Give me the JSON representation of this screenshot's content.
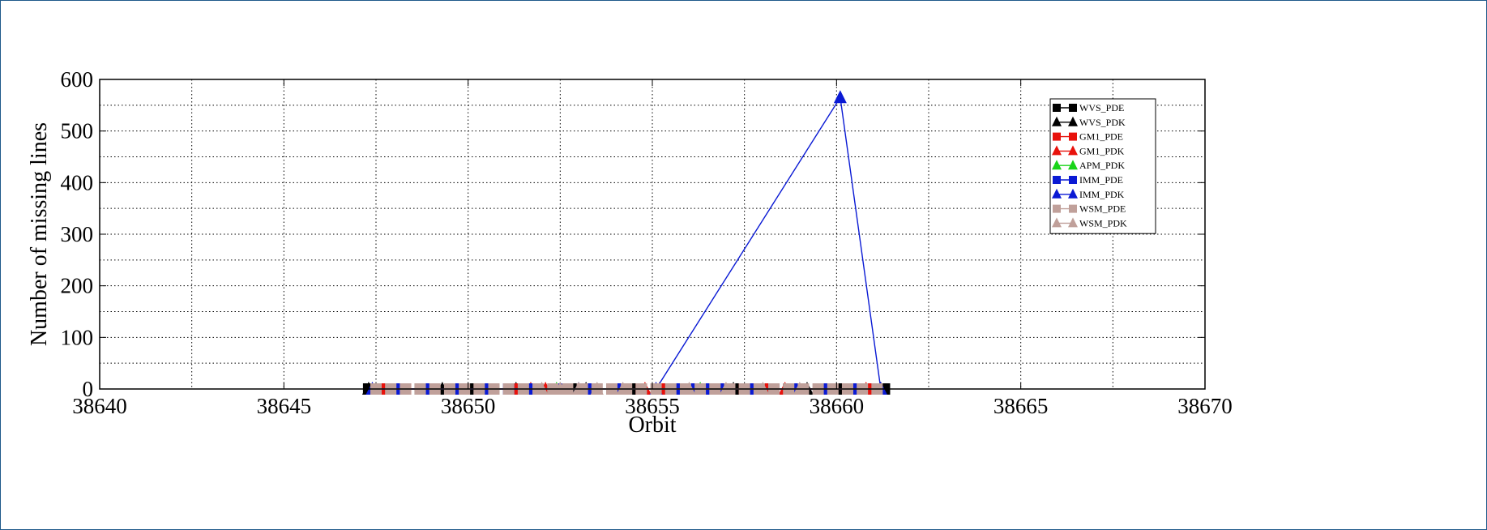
{
  "chart_data": {
    "type": "line",
    "xlabel": "Orbit",
    "ylabel": "Number of missing lines",
    "xlim": [
      38640,
      38670
    ],
    "ylim": [
      0,
      600
    ],
    "xticks": [
      38640,
      38645,
      38650,
      38655,
      38660,
      38665,
      38670
    ],
    "yticks": [
      0,
      100,
      200,
      300,
      400,
      500,
      600
    ],
    "grid": true,
    "legend_position": "top-right",
    "series": [
      {
        "name": "WVS_PDE",
        "marker": "square",
        "color": "#000000",
        "x": [
          38647.3,
          38648.7,
          38650.1,
          38651.6,
          38653.0,
          38654.4,
          38655.9,
          38657.3,
          38658.7,
          38660.1,
          38661.3
        ],
        "y": [
          0,
          0,
          0,
          0,
          0,
          0,
          0,
          0,
          0,
          0,
          0
        ]
      },
      {
        "name": "WVS_PDK",
        "marker": "triangle",
        "color": "#000000",
        "x": [
          38647.3,
          38649.3,
          38651.3,
          38653.2,
          38655.2,
          38657.2,
          38659.2,
          38661.2
        ],
        "y": [
          0,
          0,
          0,
          0,
          0,
          0,
          0,
          0
        ]
      },
      {
        "name": "GM1_PDE",
        "marker": "square",
        "color": "#e8120c",
        "x": [
          38647.6,
          38648.3,
          38649.0,
          38649.8,
          38650.5,
          38651.2,
          38651.9,
          38652.6,
          38653.3,
          38654.0,
          38654.7,
          38655.4,
          38656.1,
          38656.8,
          38657.5,
          38658.2,
          38658.9,
          38659.6,
          38660.3,
          38661.0
        ],
        "y": [
          0,
          0,
          0,
          0,
          0,
          0,
          0,
          0,
          0,
          0,
          0,
          0,
          0,
          0,
          0,
          0,
          0,
          0,
          0,
          0
        ]
      },
      {
        "name": "GM1_PDK",
        "marker": "triangle",
        "color": "#e8120c",
        "x": [
          38651.7,
          38652.1,
          38654.8,
          38655.2,
          38658.6,
          38660.8
        ],
        "y": [
          0,
          0,
          0,
          0,
          0,
          0
        ]
      },
      {
        "name": "APM_PDK",
        "marker": "triangle",
        "color": "#19d419",
        "x": [
          38652.4,
          38656.3
        ],
        "y": [
          0,
          0
        ]
      },
      {
        "name": "IMM_PDE",
        "marker": "square",
        "color": "#0a1ad4",
        "x": [
          38648.1,
          38648.9,
          38649.6,
          38650.4,
          38651.1,
          38651.8,
          38652.5,
          38653.4,
          38654.1,
          38655.6,
          38656.1,
          38656.5,
          38656.9,
          38657.6,
          38658.3,
          38659.0,
          38659.7,
          38660.6
        ],
        "y": [
          0,
          0,
          0,
          0,
          0,
          0,
          0,
          0,
          0,
          0,
          0,
          0,
          0,
          0,
          0,
          0,
          0,
          0
        ]
      },
      {
        "name": "IMM_PDK",
        "marker": "triangle",
        "color": "#0a1ad4",
        "x": [
          38647.4,
          38653.0,
          38655.1,
          38660.1,
          38661.2
        ],
        "y": [
          0,
          0,
          0,
          565,
          0
        ]
      },
      {
        "name": "WSM_PDE",
        "marker": "square",
        "color": "#c0a09a",
        "x": [
          38647.5,
          38647.9,
          38648.3,
          38648.7,
          38649.1,
          38649.5,
          38649.9,
          38650.3,
          38650.7,
          38651.1,
          38651.5,
          38651.9,
          38652.3,
          38652.7,
          38653.1,
          38653.5,
          38653.9,
          38654.3,
          38654.7,
          38655.1,
          38655.5,
          38655.9,
          38656.3,
          38656.7,
          38657.1,
          38657.5,
          38657.9,
          38658.3,
          38658.7,
          38659.1,
          38659.5,
          38659.9,
          38660.3,
          38660.7,
          38661.1
        ],
        "y": [
          0,
          0,
          0,
          0,
          0,
          0,
          0,
          0,
          0,
          0,
          0,
          0,
          0,
          0,
          0,
          0,
          0,
          0,
          0,
          0,
          0,
          0,
          0,
          0,
          0,
          0,
          0,
          0,
          0,
          0,
          0,
          0,
          0,
          0,
          0
        ]
      },
      {
        "name": "WSM_PDK",
        "marker": "triangle",
        "color": "#c0a09a",
        "x": [
          38652.0,
          38652.5,
          38653.0,
          38653.5,
          38654.2,
          38656.0,
          38657.0,
          38658.0,
          38659.0
        ],
        "y": [
          0,
          0,
          0,
          0,
          0,
          0,
          0,
          0,
          0
        ]
      }
    ]
  }
}
